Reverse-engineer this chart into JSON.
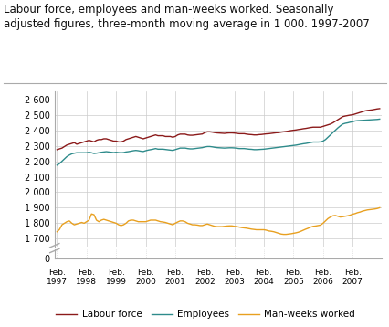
{
  "title_line1": "Labour force, employees and man-weeks worked. Seasonally",
  "title_line2": "adjusted figures, three-month moving average in 1 000. 1997-2007",
  "title_fontsize": 8.5,
  "background_color": "#ffffff",
  "grid_color": "#cccccc",
  "line_colors": {
    "labour_force": "#8B1A1A",
    "employees": "#2E8B8B",
    "man_weeks": "#E8A020"
  },
  "legend_labels": [
    "Labour force",
    "Employees",
    "Man-weeks worked"
  ],
  "yticks_upper": [
    1700,
    1800,
    1900,
    2000,
    2100,
    2200,
    2300,
    2400,
    2500,
    2600
  ],
  "ytick_labels_upper": [
    "1 700",
    "1 800",
    "1 900",
    "2 000",
    "2 100",
    "2 200",
    "2 300",
    "2 400",
    "2 500",
    "2 600"
  ],
  "ylim_upper": [
    1650,
    2650
  ],
  "ylim_lower": [
    0,
    50
  ],
  "xtick_years": [
    1997,
    1998,
    1999,
    2000,
    2001,
    2002,
    2003,
    2004,
    2005,
    2006,
    2007
  ],
  "n_points": 132,
  "labour_force": [
    2275,
    2280,
    2285,
    2295,
    2305,
    2310,
    2315,
    2320,
    2310,
    2315,
    2320,
    2325,
    2330,
    2335,
    2330,
    2325,
    2335,
    2340,
    2340,
    2345,
    2345,
    2340,
    2335,
    2330,
    2330,
    2325,
    2325,
    2330,
    2340,
    2345,
    2350,
    2355,
    2360,
    2355,
    2350,
    2345,
    2350,
    2355,
    2360,
    2365,
    2370,
    2365,
    2365,
    2365,
    2360,
    2360,
    2360,
    2355,
    2360,
    2370,
    2375,
    2375,
    2375,
    2370,
    2368,
    2368,
    2370,
    2372,
    2374,
    2376,
    2385,
    2390,
    2390,
    2388,
    2385,
    2383,
    2382,
    2381,
    2380,
    2382,
    2383,
    2383,
    2382,
    2380,
    2378,
    2378,
    2378,
    2375,
    2373,
    2372,
    2370,
    2370,
    2372,
    2373,
    2375,
    2377,
    2378,
    2380,
    2382,
    2384,
    2385,
    2388,
    2390,
    2392,
    2395,
    2398,
    2400,
    2402,
    2405,
    2407,
    2410,
    2412,
    2415,
    2418,
    2420,
    2420,
    2420,
    2420,
    2425,
    2430,
    2435,
    2440,
    2448,
    2458,
    2468,
    2478,
    2488,
    2492,
    2495,
    2498,
    2500,
    2505,
    2510,
    2515,
    2520,
    2525,
    2528,
    2530,
    2532,
    2535,
    2538,
    2540
  ],
  "employees": [
    2175,
    2185,
    2200,
    2215,
    2230,
    2240,
    2248,
    2252,
    2255,
    2255,
    2255,
    2255,
    2255,
    2258,
    2255,
    2250,
    2252,
    2255,
    2258,
    2260,
    2262,
    2260,
    2258,
    2256,
    2258,
    2256,
    2255,
    2256,
    2260,
    2262,
    2265,
    2268,
    2270,
    2268,
    2265,
    2263,
    2268,
    2272,
    2275,
    2278,
    2282,
    2278,
    2278,
    2278,
    2276,
    2274,
    2272,
    2270,
    2275,
    2280,
    2285,
    2285,
    2285,
    2282,
    2280,
    2280,
    2282,
    2284,
    2286,
    2288,
    2292,
    2295,
    2295,
    2293,
    2290,
    2288,
    2287,
    2286,
    2285,
    2286,
    2287,
    2287,
    2286,
    2284,
    2282,
    2282,
    2282,
    2280,
    2278,
    2277,
    2275,
    2275,
    2276,
    2277,
    2278,
    2280,
    2282,
    2284,
    2286,
    2288,
    2290,
    2292,
    2294,
    2296,
    2298,
    2300,
    2302,
    2304,
    2307,
    2310,
    2313,
    2315,
    2318,
    2321,
    2324,
    2324,
    2324,
    2325,
    2330,
    2340,
    2355,
    2370,
    2385,
    2400,
    2415,
    2428,
    2440,
    2445,
    2448,
    2452,
    2455,
    2460,
    2462,
    2463,
    2464,
    2465,
    2466,
    2467,
    2468,
    2469,
    2470,
    2472
  ],
  "man_weeks": [
    1745,
    1760,
    1790,
    1800,
    1810,
    1815,
    1800,
    1790,
    1795,
    1800,
    1805,
    1800,
    1810,
    1820,
    1860,
    1855,
    1820,
    1810,
    1820,
    1825,
    1820,
    1815,
    1810,
    1805,
    1800,
    1790,
    1785,
    1790,
    1800,
    1815,
    1820,
    1820,
    1815,
    1810,
    1810,
    1810,
    1810,
    1815,
    1820,
    1820,
    1820,
    1815,
    1810,
    1808,
    1805,
    1800,
    1795,
    1790,
    1800,
    1808,
    1815,
    1815,
    1810,
    1800,
    1795,
    1790,
    1790,
    1788,
    1785,
    1785,
    1790,
    1795,
    1790,
    1785,
    1780,
    1778,
    1778,
    1778,
    1780,
    1782,
    1783,
    1783,
    1780,
    1778,
    1775,
    1772,
    1770,
    1768,
    1765,
    1762,
    1760,
    1758,
    1758,
    1758,
    1758,
    1755,
    1750,
    1748,
    1745,
    1740,
    1735,
    1730,
    1728,
    1728,
    1730,
    1732,
    1735,
    1738,
    1742,
    1748,
    1755,
    1762,
    1768,
    1775,
    1780,
    1782,
    1785,
    1788,
    1800,
    1815,
    1830,
    1840,
    1848,
    1850,
    1845,
    1840,
    1842,
    1845,
    1848,
    1852,
    1858,
    1862,
    1868,
    1872,
    1878,
    1882,
    1886,
    1888,
    1890,
    1892,
    1895,
    1900
  ]
}
